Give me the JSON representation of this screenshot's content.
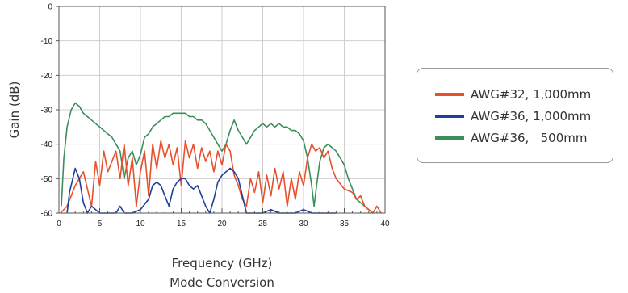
{
  "chart_data": {
    "type": "line",
    "xlabel": "Frequency (GHz)",
    "subtitle": "Mode Conversion",
    "ylabel": "Gain (dB)",
    "xlim": [
      0,
      40
    ],
    "ylim": [
      -60,
      0
    ],
    "x_ticks": [
      "0",
      "5",
      "10",
      "15",
      "20",
      "25",
      "30",
      "35",
      "40"
    ],
    "y_ticks": [
      "0",
      "-10",
      "-20",
      "-30",
      "-40",
      "-50",
      "-60"
    ],
    "grid": true,
    "legend_position": "right",
    "series": [
      {
        "name": "AWG#32, 1,000mm",
        "color": "#e8502c",
        "points": [
          [
            0.2,
            -60
          ],
          [
            1,
            -58
          ],
          [
            2,
            -52
          ],
          [
            3,
            -48
          ],
          [
            4,
            -58
          ],
          [
            4.5,
            -45
          ],
          [
            5,
            -52
          ],
          [
            5.5,
            -42
          ],
          [
            6,
            -48
          ],
          [
            7,
            -42
          ],
          [
            7.5,
            -50
          ],
          [
            8,
            -40
          ],
          [
            8.5,
            -52
          ],
          [
            9,
            -44
          ],
          [
            9.5,
            -58
          ],
          [
            10,
            -48
          ],
          [
            10.5,
            -42
          ],
          [
            11,
            -55
          ],
          [
            11.5,
            -40
          ],
          [
            12,
            -47
          ],
          [
            12.5,
            -39
          ],
          [
            13,
            -44
          ],
          [
            13.5,
            -40
          ],
          [
            14,
            -46
          ],
          [
            14.5,
            -41
          ],
          [
            15,
            -52
          ],
          [
            15.5,
            -39
          ],
          [
            16,
            -44
          ],
          [
            16.5,
            -40
          ],
          [
            17,
            -47
          ],
          [
            17.5,
            -41
          ],
          [
            18,
            -45
          ],
          [
            18.5,
            -42
          ],
          [
            19,
            -48
          ],
          [
            19.5,
            -42
          ],
          [
            20,
            -46
          ],
          [
            20.5,
            -40
          ],
          [
            21,
            -42
          ],
          [
            21.5,
            -49
          ],
          [
            22,
            -52
          ],
          [
            22.5,
            -56
          ],
          [
            23,
            -58
          ],
          [
            23.5,
            -50
          ],
          [
            24,
            -54
          ],
          [
            24.5,
            -48
          ],
          [
            25,
            -57
          ],
          [
            25.5,
            -49
          ],
          [
            26,
            -55
          ],
          [
            26.5,
            -47
          ],
          [
            27,
            -53
          ],
          [
            27.5,
            -48
          ],
          [
            28,
            -58
          ],
          [
            28.5,
            -50
          ],
          [
            29,
            -56
          ],
          [
            29.5,
            -48
          ],
          [
            30,
            -52
          ],
          [
            30.5,
            -44
          ],
          [
            31,
            -40
          ],
          [
            31.5,
            -42
          ],
          [
            32,
            -41
          ],
          [
            32.5,
            -44
          ],
          [
            33,
            -42
          ],
          [
            33.5,
            -47
          ],
          [
            34,
            -50
          ],
          [
            35,
            -53
          ],
          [
            36,
            -54
          ],
          [
            36.5,
            -56
          ],
          [
            37,
            -55
          ],
          [
            37.5,
            -58
          ],
          [
            38,
            -59
          ],
          [
            38.5,
            -60
          ],
          [
            39,
            -58
          ],
          [
            39.5,
            -60
          ]
        ]
      },
      {
        "name": "AWG#36, 1,000mm",
        "color": "#1f3f9a",
        "points": [
          [
            1,
            -60
          ],
          [
            1.3,
            -54
          ],
          [
            1.7,
            -50
          ],
          [
            2,
            -47
          ],
          [
            2.5,
            -50
          ],
          [
            3,
            -57
          ],
          [
            3.5,
            -60
          ],
          [
            4,
            -58
          ],
          [
            5,
            -60
          ],
          [
            6,
            -60
          ],
          [
            7,
            -60
          ],
          [
            7.5,
            -58
          ],
          [
            8,
            -60
          ],
          [
            9,
            -60
          ],
          [
            10,
            -59
          ],
          [
            11,
            -56
          ],
          [
            11.5,
            -52
          ],
          [
            12,
            -51
          ],
          [
            12.5,
            -52
          ],
          [
            13,
            -55
          ],
          [
            13.5,
            -58
          ],
          [
            14,
            -53
          ],
          [
            14.5,
            -51
          ],
          [
            15,
            -50
          ],
          [
            15.5,
            -50
          ],
          [
            16,
            -52
          ],
          [
            16.5,
            -53
          ],
          [
            17,
            -52
          ],
          [
            17.5,
            -55
          ],
          [
            18,
            -58
          ],
          [
            18.5,
            -60
          ],
          [
            19,
            -56
          ],
          [
            19.5,
            -51
          ],
          [
            20,
            -49
          ],
          [
            20.5,
            -48
          ],
          [
            21,
            -47
          ],
          [
            21.5,
            -48
          ],
          [
            22,
            -50
          ],
          [
            22.5,
            -55
          ],
          [
            23,
            -60
          ],
          [
            24,
            -60
          ],
          [
            25,
            -60
          ],
          [
            26,
            -59
          ],
          [
            27,
            -60
          ],
          [
            28,
            -60
          ],
          [
            29,
            -60
          ],
          [
            30,
            -59
          ],
          [
            31,
            -60
          ],
          [
            32,
            -60
          ],
          [
            33,
            -60
          ],
          [
            34,
            -60
          ]
        ]
      },
      {
        "name": "AWG#36,   500mm",
        "color": "#3a8f5a",
        "points": [
          [
            0.3,
            -58
          ],
          [
            0.6,
            -44
          ],
          [
            1,
            -35
          ],
          [
            1.5,
            -30
          ],
          [
            2,
            -28
          ],
          [
            2.5,
            -29
          ],
          [
            3,
            -31
          ],
          [
            3.5,
            -32
          ],
          [
            4,
            -33
          ],
          [
            4.5,
            -34
          ],
          [
            5,
            -35
          ],
          [
            5.5,
            -36
          ],
          [
            6,
            -37
          ],
          [
            6.5,
            -38
          ],
          [
            7,
            -40
          ],
          [
            7.5,
            -42
          ],
          [
            8,
            -50
          ],
          [
            8.5,
            -44
          ],
          [
            9,
            -42
          ],
          [
            9.5,
            -46
          ],
          [
            10,
            -43
          ],
          [
            10.5,
            -38
          ],
          [
            11,
            -37
          ],
          [
            11.5,
            -35
          ],
          [
            12,
            -34
          ],
          [
            12.5,
            -33
          ],
          [
            13,
            -32
          ],
          [
            13.5,
            -32
          ],
          [
            14,
            -31
          ],
          [
            14.5,
            -31
          ],
          [
            15,
            -31
          ],
          [
            15.5,
            -31
          ],
          [
            16,
            -32
          ],
          [
            16.5,
            -32
          ],
          [
            17,
            -33
          ],
          [
            17.5,
            -33
          ],
          [
            18,
            -34
          ],
          [
            18.5,
            -36
          ],
          [
            19,
            -38
          ],
          [
            19.5,
            -40
          ],
          [
            20,
            -42
          ],
          [
            20.5,
            -40
          ],
          [
            21,
            -36
          ],
          [
            21.5,
            -33
          ],
          [
            22,
            -36
          ],
          [
            22.5,
            -38
          ],
          [
            23,
            -40
          ],
          [
            23.5,
            -38
          ],
          [
            24,
            -36
          ],
          [
            24.5,
            -35
          ],
          [
            25,
            -34
          ],
          [
            25.5,
            -35
          ],
          [
            26,
            -34
          ],
          [
            26.5,
            -35
          ],
          [
            27,
            -34
          ],
          [
            27.5,
            -35
          ],
          [
            28,
            -35
          ],
          [
            28.5,
            -36
          ],
          [
            29,
            -36
          ],
          [
            29.5,
            -37
          ],
          [
            30,
            -39
          ],
          [
            30.5,
            -44
          ],
          [
            31,
            -52
          ],
          [
            31.3,
            -58
          ],
          [
            31.6,
            -52
          ],
          [
            32,
            -45
          ],
          [
            32.5,
            -41
          ],
          [
            33,
            -40
          ],
          [
            33.5,
            -41
          ],
          [
            34,
            -42
          ],
          [
            34.5,
            -44
          ],
          [
            35,
            -46
          ],
          [
            35.5,
            -50
          ],
          [
            36,
            -53
          ],
          [
            36.5,
            -56
          ],
          [
            37,
            -57
          ],
          [
            37.5,
            -58
          ],
          [
            38,
            -59
          ],
          [
            38.5,
            -60
          ]
        ]
      }
    ]
  }
}
